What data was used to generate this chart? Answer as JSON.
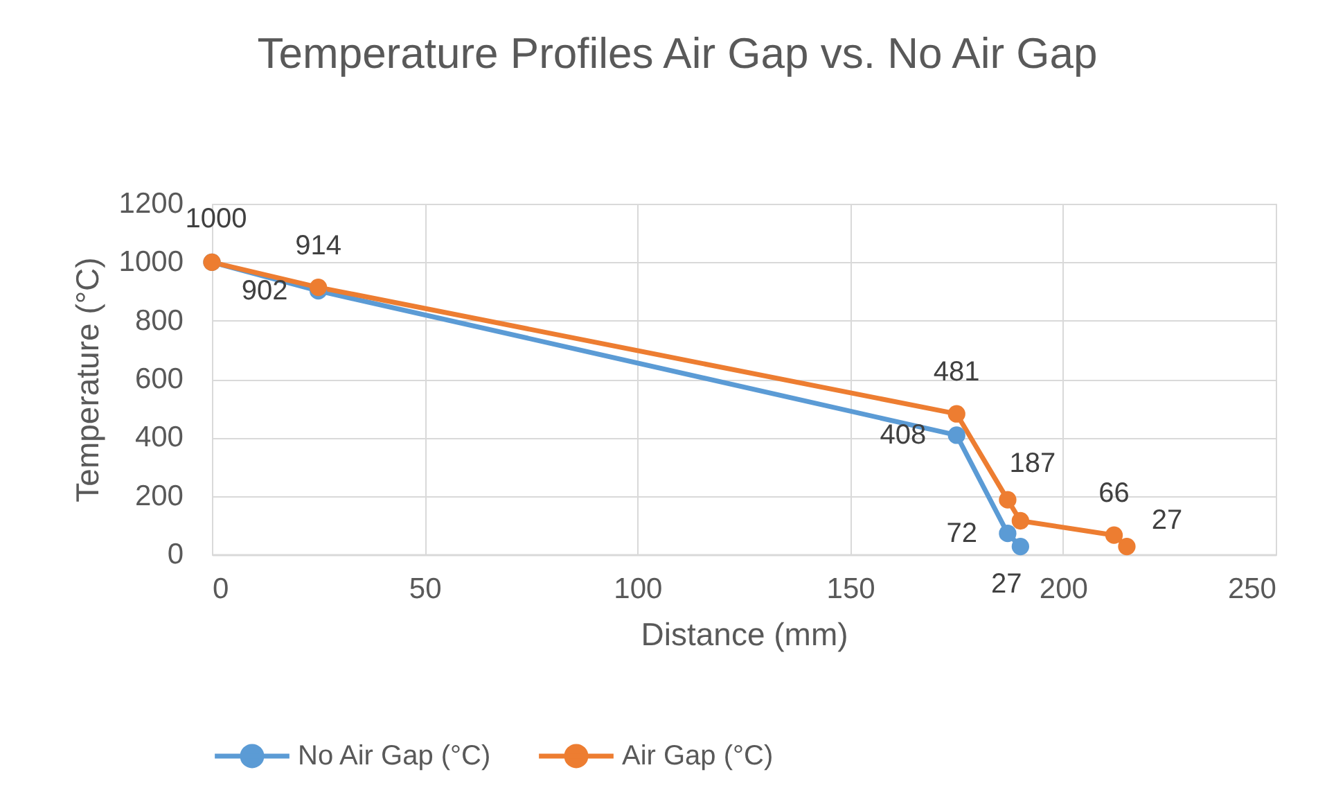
{
  "chart_data": {
    "type": "line",
    "title": "Temperature Profiles Air Gap vs. No Air Gap",
    "xlabel": "Distance (mm)",
    "ylabel": "Temperature (°C)",
    "xlim": [
      0,
      250
    ],
    "xticks": [
      0,
      50,
      100,
      150,
      200,
      250
    ],
    "ylim": [
      0,
      1200
    ],
    "yticks": [
      0,
      200,
      400,
      600,
      800,
      1000,
      1200
    ],
    "grid": true,
    "legend": "bottom",
    "marker": "circle",
    "line_style": "solid",
    "series": [
      {
        "name": "No Air Gap (°C)",
        "color": "#5b9bd5",
        "x": [
          0,
          25,
          175,
          187,
          190
        ],
        "values": [
          1000,
          902,
          408,
          72,
          27
        ],
        "value_labels": [
          null,
          "902",
          "408",
          "72",
          "27"
        ]
      },
      {
        "name": "Air Gap (°C)",
        "color": "#ed7d31",
        "x": [
          0,
          25,
          175,
          187,
          190,
          212,
          215
        ],
        "values": [
          1000,
          914,
          481,
          187,
          115,
          66,
          27
        ],
        "value_labels": [
          "1000",
          "914",
          "481",
          "187",
          null,
          "66",
          "27"
        ]
      }
    ]
  }
}
